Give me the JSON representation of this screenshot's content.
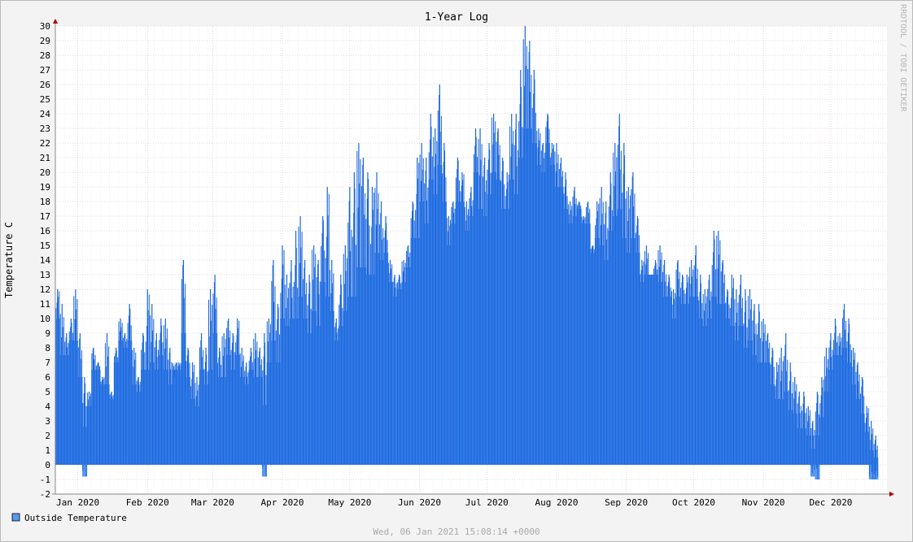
{
  "chart_data": {
    "type": "area",
    "title": "1-Year Log",
    "xlabel": "",
    "ylabel": "Temperature C",
    "ylim": [
      -2,
      30
    ],
    "yticks": [
      -2,
      -1,
      0,
      1,
      2,
      3,
      4,
      5,
      6,
      7,
      8,
      9,
      10,
      11,
      12,
      13,
      14,
      15,
      16,
      17,
      18,
      19,
      20,
      21,
      22,
      23,
      24,
      25,
      26,
      27,
      28,
      29,
      30
    ],
    "xlim": [
      0,
      370
    ],
    "x_unit": "day of year 2020 (0 = Jan 1)",
    "xticks": [
      {
        "label": "Jan 2020",
        "value": 10
      },
      {
        "label": "Feb 2020",
        "value": 41
      },
      {
        "label": "Mar 2020",
        "value": 70
      },
      {
        "label": "Apr 2020",
        "value": 101
      },
      {
        "label": "May 2020",
        "value": 131
      },
      {
        "label": "Jun 2020",
        "value": 162
      },
      {
        "label": "Jul 2020",
        "value": 192
      },
      {
        "label": "Aug 2020",
        "value": 223
      },
      {
        "label": "Sep 2020",
        "value": 254
      },
      {
        "label": "Oct 2020",
        "value": 284
      },
      {
        "label": "Nov 2020",
        "value": 315
      },
      {
        "label": "Dec 2020",
        "value": 345
      }
    ],
    "grid": true,
    "legend_position": "bottom-left",
    "series": [
      {
        "name": "Outside Temperature",
        "color": "#5898f0",
        "edge_color": "#1a66dd",
        "x": [
          0,
          2,
          4,
          6,
          8,
          10,
          12,
          14,
          16,
          18,
          20,
          22,
          24,
          26,
          28,
          30,
          32,
          34,
          36,
          38,
          40,
          42,
          44,
          46,
          48,
          50,
          52,
          54,
          56,
          58,
          60,
          62,
          64,
          66,
          68,
          70,
          72,
          74,
          76,
          78,
          80,
          82,
          84,
          86,
          88,
          90,
          92,
          94,
          96,
          98,
          100,
          102,
          104,
          106,
          108,
          110,
          112,
          114,
          116,
          118,
          120,
          122,
          124,
          126,
          128,
          130,
          132,
          134,
          136,
          138,
          140,
          142,
          144,
          146,
          148,
          150,
          152,
          154,
          156,
          158,
          160,
          162,
          164,
          166,
          168,
          170,
          172,
          174,
          176,
          178,
          180,
          182,
          184,
          186,
          188,
          190,
          192,
          194,
          196,
          198,
          200,
          202,
          204,
          206,
          208,
          210,
          212,
          214,
          216,
          218,
          220,
          222,
          224,
          226,
          228,
          230,
          232,
          234,
          236,
          238,
          240,
          242,
          244,
          246,
          248,
          250,
          252,
          254,
          256,
          258,
          260,
          262,
          264,
          266,
          268,
          270,
          272,
          274,
          276,
          278,
          280,
          282,
          284,
          286,
          288,
          290,
          292,
          294,
          296,
          298,
          300,
          302,
          304,
          306,
          308,
          310,
          312,
          314,
          316,
          318,
          320,
          322,
          324,
          326,
          328,
          330,
          332,
          334,
          336,
          338,
          340,
          342,
          344,
          346,
          348,
          350,
          352,
          354,
          356,
          358,
          360,
          362,
          364,
          366
        ],
        "min": [
          8,
          4,
          6,
          7,
          5,
          3,
          -0.8,
          3,
          5,
          6,
          5,
          2,
          4,
          6,
          7,
          7,
          6,
          3,
          4,
          4,
          1,
          3,
          4,
          5,
          3,
          3,
          7,
          6,
          4,
          4,
          2,
          2,
          4,
          3,
          1,
          5,
          4,
          3,
          5,
          4,
          5,
          4,
          4,
          5,
          3,
          4,
          -0.8,
          4,
          3,
          3,
          5,
          6,
          6,
          4,
          6,
          6,
          5,
          6,
          5,
          8,
          4,
          7,
          7,
          6,
          6,
          4,
          3,
          5,
          6,
          6,
          7,
          9,
          10,
          12,
          11,
          10,
          11,
          11,
          12,
          13,
          10,
          14,
          12,
          15,
          14,
          15,
          14,
          13,
          15,
          15,
          16,
          14,
          15,
          17,
          12,
          13,
          15,
          16,
          16,
          14,
          15,
          15,
          13,
          15,
          16,
          17,
          17,
          18,
          18,
          20,
          19,
          16,
          17,
          15,
          15,
          15,
          17,
          16,
          15,
          14,
          13,
          11,
          10,
          12,
          12,
          11,
          9,
          10,
          11,
          12,
          11,
          11,
          13,
          12,
          10,
          9,
          10,
          8,
          9,
          9,
          9,
          9,
          8,
          7,
          7,
          7,
          7,
          6,
          8,
          8,
          6,
          5,
          6,
          4,
          5,
          4,
          3,
          4,
          5,
          3,
          2,
          1,
          1,
          0.5,
          1,
          0,
          0,
          0,
          -0.8,
          -1,
          0.5,
          2,
          4,
          5,
          6,
          5,
          4,
          3,
          2,
          1,
          0.5,
          -1,
          -1,
          0,
          1,
          2,
          2
        ],
        "max": [
          12,
          11,
          9,
          10,
          12,
          9,
          6,
          5,
          8,
          7,
          6,
          9,
          5,
          8,
          10,
          9,
          11,
          8,
          6,
          9,
          12,
          11,
          9,
          10,
          10,
          8,
          6,
          7,
          14,
          8,
          7,
          6,
          9,
          8,
          12,
          13,
          8,
          9,
          10,
          9,
          10,
          8,
          7,
          8,
          9,
          8,
          9,
          10,
          14,
          11,
          15,
          13,
          14,
          16,
          17,
          14,
          13,
          15,
          14,
          17,
          19,
          14,
          10,
          13,
          15,
          19,
          20,
          22,
          21,
          20,
          19,
          20,
          18,
          17,
          14,
          13,
          13,
          14,
          15,
          18,
          21,
          22,
          21,
          24,
          23,
          26,
          22,
          17,
          18,
          21,
          20,
          18,
          19,
          23,
          23,
          21,
          22,
          24,
          23,
          21,
          20,
          24,
          24,
          27,
          30,
          29,
          27,
          23,
          22,
          24,
          22,
          22,
          21,
          20,
          18,
          19,
          18,
          17,
          18,
          15,
          18,
          19,
          18,
          20,
          22,
          24,
          22,
          19,
          20,
          17,
          14,
          15,
          13,
          14,
          15,
          14,
          13,
          12,
          14,
          13,
          13,
          14,
          15,
          13,
          12,
          13,
          16,
          16,
          14,
          12,
          13,
          12,
          13,
          12,
          12,
          11,
          11,
          10,
          9,
          8,
          7,
          8,
          9,
          7,
          6,
          5,
          5,
          4,
          3,
          5,
          6,
          8,
          9,
          10,
          9,
          11,
          10,
          8,
          7,
          6,
          4,
          3,
          2,
          3,
          3,
          3
        ]
      }
    ]
  },
  "watermark": "RRDTOOL / TOBI OETIKER",
  "footer_timestamp": "Wed, 06 Jan 2021 15:08:14 +0000"
}
